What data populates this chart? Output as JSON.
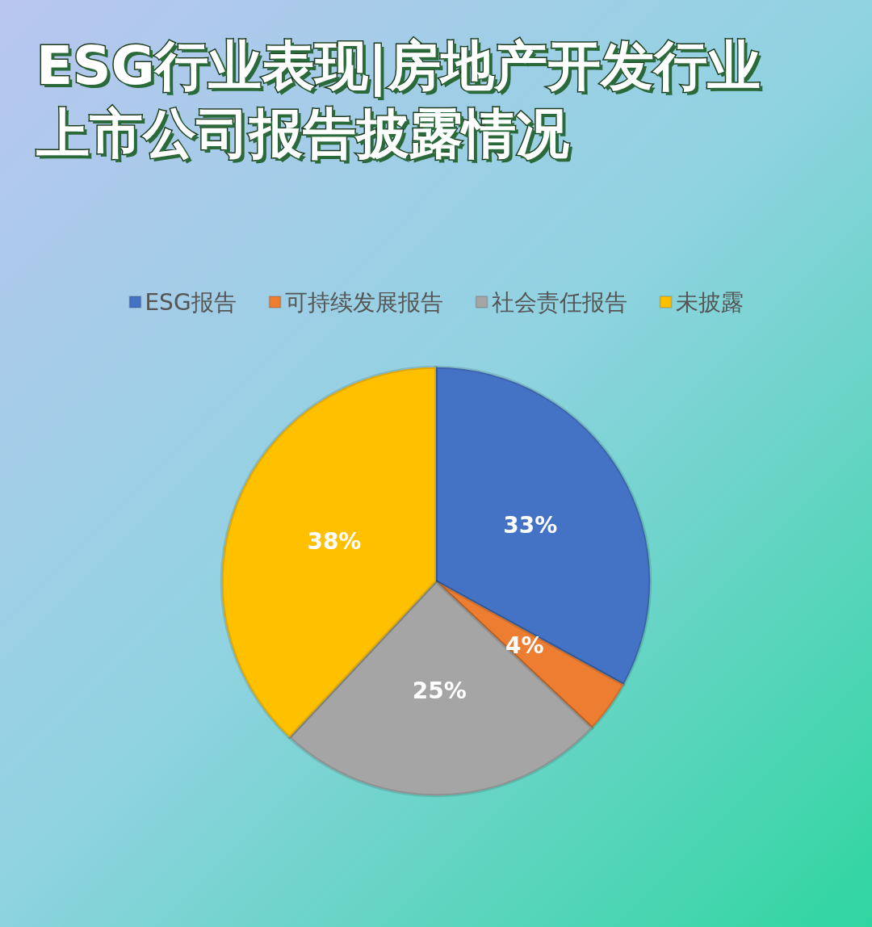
{
  "chart_data": {
    "type": "pie",
    "title": "ESG行业表现|房地产开发行业上市公司报告披露情况",
    "categories": [
      "ESG报告",
      "可持续发展报告",
      "社会责任报告",
      "未披露"
    ],
    "values": [
      33,
      4,
      25,
      38
    ],
    "colors": [
      "#4472c4",
      "#ed7d31",
      "#a5a5a5",
      "#ffc000"
    ],
    "value_labels": [
      "33%",
      "4%",
      "25%",
      "38%"
    ],
    "legend": "top"
  }
}
